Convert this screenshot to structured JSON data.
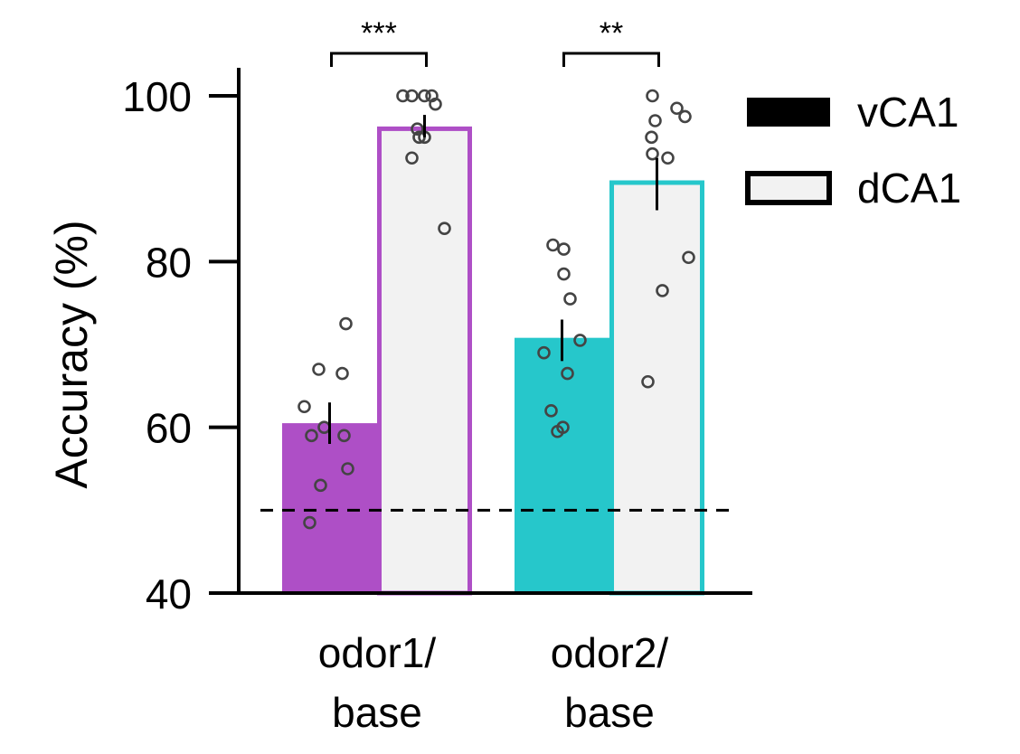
{
  "chart_data": {
    "type": "bar",
    "ylabel": "Accuracy (%)",
    "ylim": [
      40,
      100
    ],
    "yticks": [
      "40",
      "60",
      "80",
      "100"
    ],
    "chance_level": 50,
    "categories": [
      {
        "line1": "odor1/",
        "line2": "base",
        "color": "#AE4FC6"
      },
      {
        "line1": "odor2/",
        "line2": "base",
        "color": "#26C7CB"
      }
    ],
    "series": [
      {
        "name": "vCA1",
        "style": "filled"
      },
      {
        "name": "dCA1",
        "style": "outlined",
        "fill": "#F2F2F2"
      }
    ],
    "bars": [
      {
        "category": 0,
        "series": 0,
        "value": 60.5,
        "err": [
          58,
          63
        ],
        "points": [
          72.5,
          67,
          66.5,
          62.5,
          60,
          59,
          59,
          55,
          53,
          48.5
        ]
      },
      {
        "category": 0,
        "series": 1,
        "value": 96.3,
        "err": [
          95,
          97.7
        ],
        "points": [
          100,
          100,
          100,
          100,
          99,
          96,
          95,
          95,
          92.5,
          84
        ]
      },
      {
        "category": 1,
        "series": 0,
        "value": 70.8,
        "err": [
          68,
          73
        ],
        "points": [
          82,
          81.5,
          78.5,
          75.5,
          70.5,
          69,
          66.5,
          62,
          60,
          59.5
        ]
      },
      {
        "category": 1,
        "series": 1,
        "value": 89.8,
        "err": [
          86.2,
          92.5
        ],
        "points": [
          100,
          98.5,
          97.5,
          97,
          95,
          93,
          92.5,
          80.5,
          76.5,
          65.5
        ]
      }
    ],
    "significance": [
      {
        "category": 0,
        "label": "***"
      },
      {
        "category": 1,
        "label": "**"
      }
    ],
    "legend_position": "top-right"
  }
}
